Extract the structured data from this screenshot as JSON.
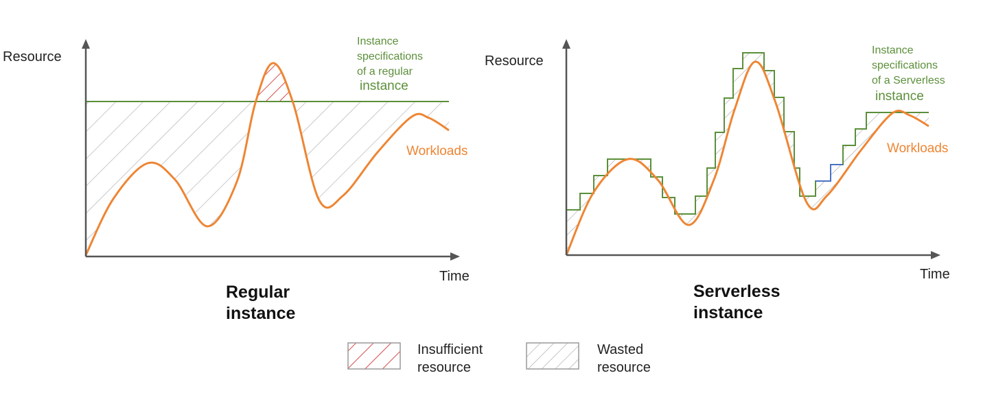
{
  "colors": {
    "workload": "#ee8533",
    "capacity": "#5b8f3a",
    "axis": "#555555",
    "wasted_hatch": "#b8b8b8",
    "insufficient_hatch": "#cc2222",
    "scale_step": "#4a72c4"
  },
  "left_panel": {
    "y_axis_label": "Resource",
    "x_axis_label": "Time",
    "spec_label_lines": [
      "Instance",
      "specifications",
      "of a regular"
    ],
    "spec_label_last": "instance",
    "workload_label": "Workloads",
    "title_lines": [
      "Regular",
      "instance"
    ]
  },
  "right_panel": {
    "y_axis_label": "Resource",
    "x_axis_label": "Time",
    "spec_label_lines": [
      "Instance",
      "specifications",
      "of a Serverless"
    ],
    "spec_label_last": "instance",
    "workload_label": "Workloads",
    "title_lines": [
      "Serverless",
      "instance"
    ]
  },
  "legend": {
    "insufficient": [
      "Insufficient",
      "resource"
    ],
    "wasted": [
      "Wasted",
      "resource"
    ]
  }
}
